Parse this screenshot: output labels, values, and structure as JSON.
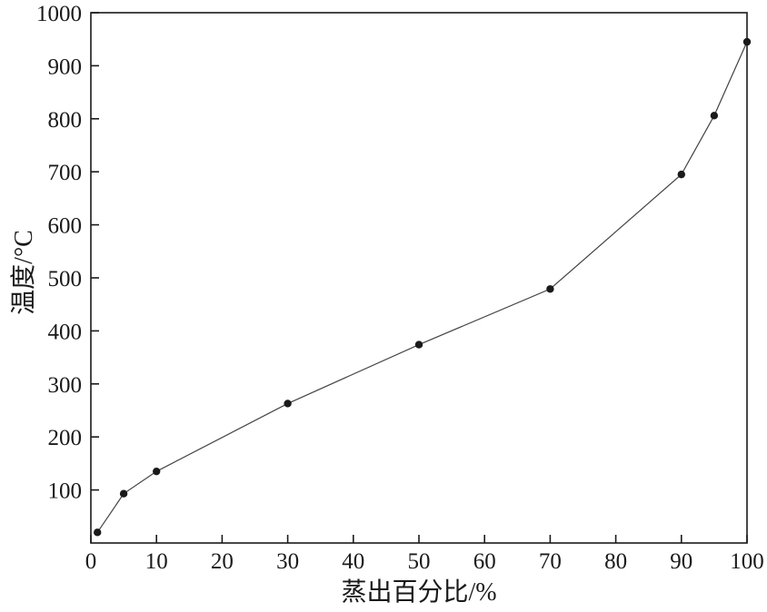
{
  "chart_data": {
    "type": "line",
    "x": [
      1,
      5,
      10,
      30,
      50,
      70,
      90,
      95,
      100
    ],
    "y": [
      20,
      93,
      135,
      263,
      374,
      479,
      695,
      806,
      945
    ],
    "title": "",
    "xlabel": "蒸出百分比/%",
    "ylabel": "温度/°C",
    "xlim": [
      0,
      100
    ],
    "ylim": [
      0,
      1000
    ],
    "x_ticks": [
      0,
      10,
      20,
      30,
      40,
      50,
      60,
      70,
      80,
      90,
      100
    ],
    "y_ticks": [
      100,
      200,
      300,
      400,
      500,
      600,
      700,
      800,
      900,
      1000
    ],
    "marker": "circle",
    "grid": false,
    "legend_position": "none",
    "colors": {
      "line": "#444444",
      "marker": "#1a1a1a",
      "axis": "#1a1a1a",
      "text": "#1a1a1a",
      "background": "#ffffff"
    }
  }
}
